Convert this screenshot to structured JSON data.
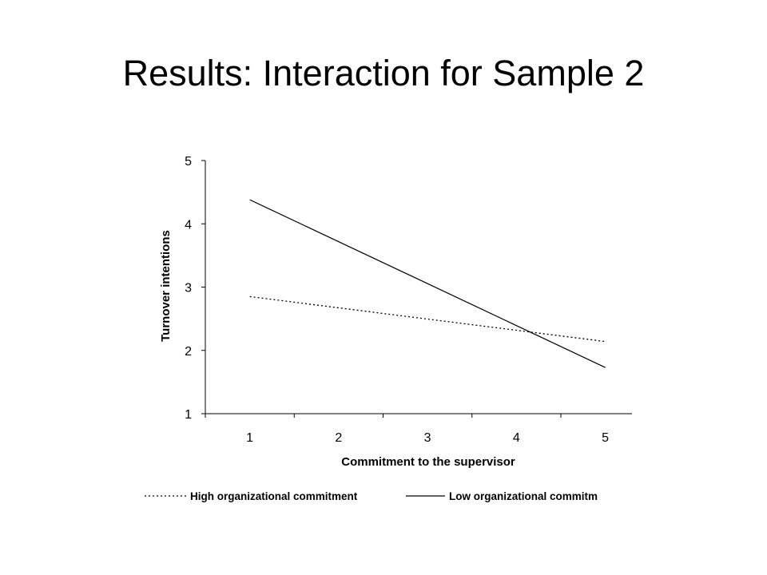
{
  "slide": {
    "title": "Results: Interaction for Sample 2"
  },
  "chart_data": {
    "type": "line",
    "title": "",
    "xlabel": "Commitment to the supervisor",
    "ylabel": "Turnover intentions",
    "x": [
      1,
      5
    ],
    "xticks": [
      "1",
      "2",
      "3",
      "4",
      "5"
    ],
    "yticks": [
      "1",
      "2",
      "3",
      "4",
      "5"
    ],
    "xlim": [
      0.5,
      5.3
    ],
    "ylim": [
      1,
      5
    ],
    "grid": false,
    "legend_position": "bottom",
    "series": [
      {
        "name": "High organizational commitment",
        "values": [
          2.85,
          2.14
        ],
        "style": "dotted",
        "color": "#000000"
      },
      {
        "name": "Low organizational commitm",
        "values": [
          4.38,
          1.73
        ],
        "style": "solid",
        "color": "#000000"
      }
    ]
  }
}
